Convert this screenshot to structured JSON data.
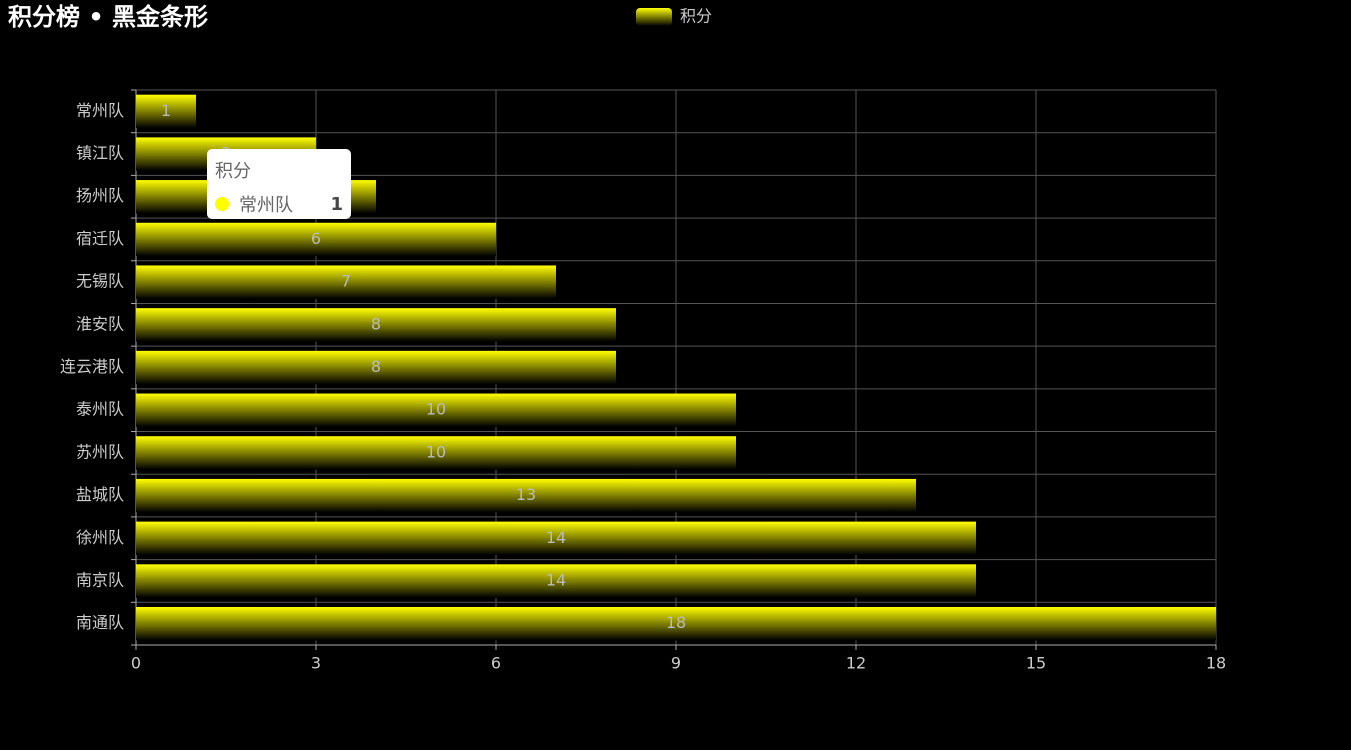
{
  "chart_data": {
    "type": "bar",
    "orientation": "horizontal",
    "title": "积分榜 • 黑金条形",
    "categories": [
      "常州队",
      "镇江队",
      "扬州队",
      "宿迁队",
      "无锡队",
      "淮安队",
      "连云港队",
      "泰州队",
      "苏州队",
      "盐城队",
      "徐州队",
      "南京队",
      "南通队"
    ],
    "series": [
      {
        "name": "积分",
        "color": "#ffff00",
        "values": [
          1,
          3,
          4,
          6,
          7,
          8,
          8,
          10,
          10,
          13,
          14,
          14,
          18
        ]
      }
    ],
    "xlim": [
      0,
      18
    ],
    "xticks": [
      0,
      3,
      6,
      9,
      12,
      15,
      18
    ],
    "grid": true,
    "legend": "top",
    "tooltip": {
      "title": "积分",
      "name": "常州队",
      "value": 1
    }
  }
}
